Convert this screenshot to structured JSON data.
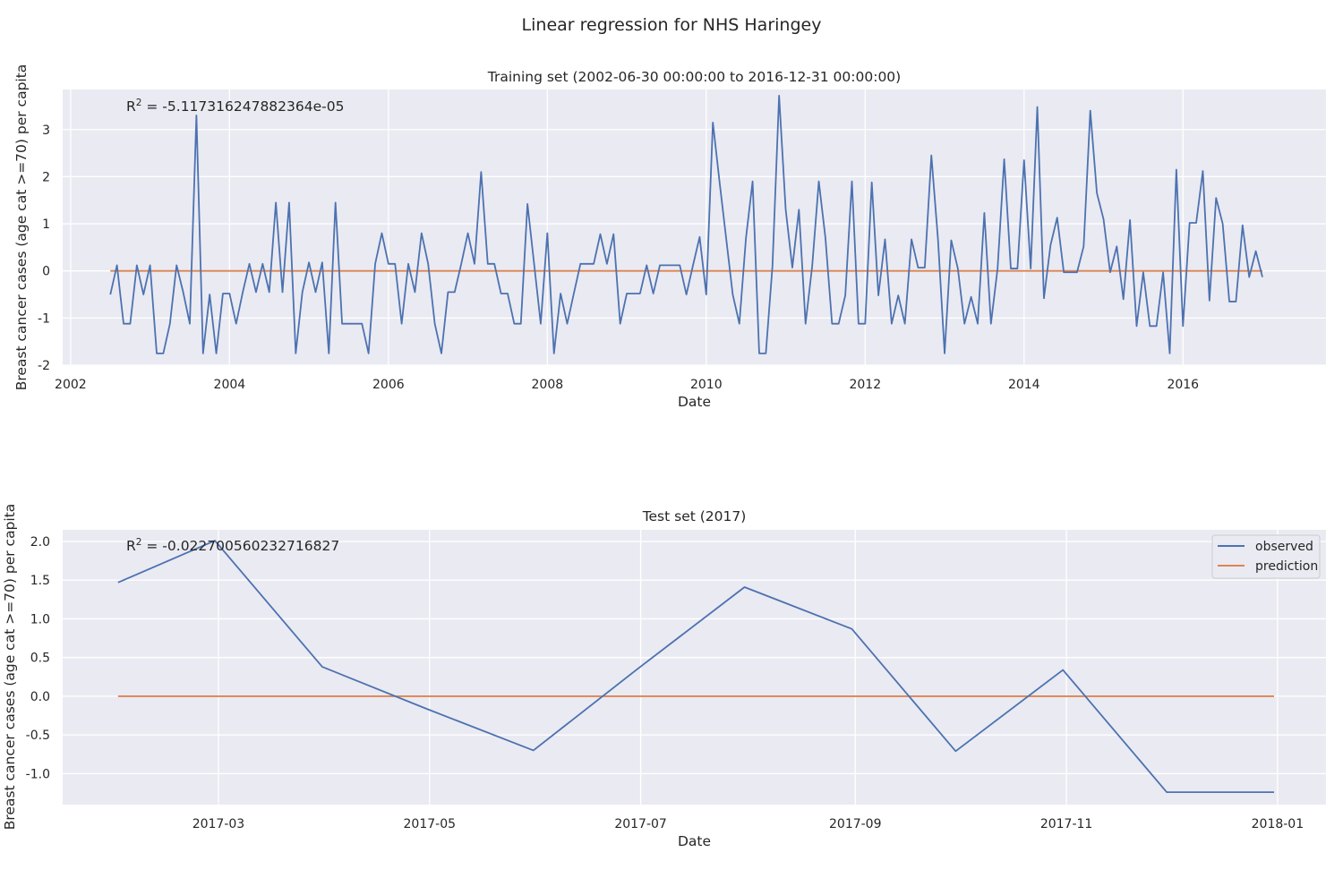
{
  "figure": {
    "title": "Linear regression for NHS Haringey"
  },
  "colors": {
    "observed": "#4c72b0",
    "prediction": "#dd8452",
    "panel_bg": "#eaeaf2",
    "grid": "#ffffff",
    "text": "#262626"
  },
  "chart_data": [
    {
      "type": "line",
      "title": "Training set (2002-06-30 00:00:00 to 2016-12-31 00:00:00)",
      "xlabel": "Date",
      "ylabel": "Breast cancer cases (age cat >=70) per capita",
      "r2_label": "R",
      "r2_sup": "2",
      "r2_value": " = -5.117316247882364e-05",
      "xlim": [
        2001.9,
        2017.8
      ],
      "ylim": [
        -2.0,
        3.85
      ],
      "xticks": [
        {
          "v": 2002.0,
          "label": "2002"
        },
        {
          "v": 2004.0,
          "label": "2004"
        },
        {
          "v": 2006.0,
          "label": "2006"
        },
        {
          "v": 2008.0,
          "label": "2008"
        },
        {
          "v": 2010.0,
          "label": "2010"
        },
        {
          "v": 2012.0,
          "label": "2012"
        },
        {
          "v": 2014.0,
          "label": "2014"
        },
        {
          "v": 2016.0,
          "label": "2016"
        }
      ],
      "yticks": [
        -2,
        -1,
        0,
        1,
        2,
        3
      ],
      "grid": true,
      "x_start": 2002.5,
      "x_step_months": 1,
      "series": [
        {
          "name": "observed",
          "values": [
            -0.5,
            0.12,
            -1.12,
            -1.12,
            0.12,
            -0.5,
            0.12,
            -1.75,
            -1.75,
            -1.12,
            0.12,
            -0.45,
            -1.12,
            3.3,
            -1.75,
            -0.5,
            -1.75,
            -0.48,
            -0.48,
            -1.12,
            -0.45,
            0.15,
            -0.45,
            0.15,
            -0.45,
            1.45,
            -0.45,
            1.45,
            -1.75,
            -0.45,
            0.18,
            -0.45,
            0.18,
            -1.75,
            1.45,
            -1.12,
            -1.12,
            -1.12,
            -1.12,
            -1.75,
            0.15,
            0.8,
            0.15,
            0.15,
            -1.12,
            0.15,
            -0.45,
            0.8,
            0.15,
            -1.12,
            -1.75,
            -0.45,
            -0.45,
            0.15,
            0.8,
            0.15,
            2.1,
            0.15,
            0.15,
            -0.48,
            -0.48,
            -1.12,
            -1.12,
            1.42,
            0.15,
            -1.12,
            0.8,
            -1.75,
            -0.48,
            -1.12,
            -0.48,
            0.15,
            0.15,
            0.15,
            0.78,
            0.15,
            0.78,
            -1.12,
            -0.48,
            -0.48,
            -0.48,
            0.12,
            -0.48,
            0.12,
            0.12,
            0.12,
            0.12,
            -0.5,
            0.12,
            0.72,
            -0.5,
            3.15,
            1.9,
            0.7,
            -0.5,
            -1.12,
            0.7,
            1.9,
            -1.75,
            -1.75,
            0.1,
            3.72,
            1.3,
            0.07,
            1.3,
            -1.12,
            0.1,
            1.9,
            0.7,
            -1.12,
            -1.12,
            -0.52,
            1.9,
            -1.12,
            -1.12,
            1.88,
            -0.52,
            0.67,
            -1.12,
            -0.52,
            -1.12,
            0.67,
            0.07,
            0.07,
            2.45,
            0.67,
            -1.75,
            0.65,
            0.05,
            -1.12,
            -0.55,
            -1.12,
            1.23,
            -1.12,
            0.05,
            2.37,
            0.05,
            0.05,
            2.35,
            0.05,
            3.48,
            -0.58,
            0.55,
            1.13,
            -0.03,
            -0.03,
            -0.03,
            0.52,
            3.4,
            1.65,
            1.1,
            -0.03,
            0.52,
            -0.6,
            1.08,
            -1.17,
            -0.03,
            -1.17,
            -1.17,
            -0.03,
            -1.75,
            2.15,
            -1.17,
            1.02,
            1.02,
            2.12,
            -0.63,
            1.55,
            1.0,
            -0.65,
            -0.65,
            0.97,
            -0.13,
            0.42,
            -0.13
          ]
        },
        {
          "name": "prediction",
          "values": [
            0.0,
            0.0
          ]
        }
      ]
    },
    {
      "type": "line",
      "title": "Test set (2017)",
      "xlabel": "Date",
      "ylabel": "Breast cancer cases (age cat >=70) per capita",
      "r2_label": "R",
      "r2_sup": "2",
      "r2_value": " = -0.022700560232716827",
      "legend_position": "upper right",
      "xlim": [
        "2017-01-15",
        "2018-01-15"
      ],
      "ylim": [
        -1.4,
        2.15
      ],
      "xticks": [
        {
          "v": "2017-03-01",
          "label": "2017-03"
        },
        {
          "v": "2017-05-01",
          "label": "2017-05"
        },
        {
          "v": "2017-07-01",
          "label": "2017-07"
        },
        {
          "v": "2017-09-01",
          "label": "2017-09"
        },
        {
          "v": "2017-11-01",
          "label": "2017-11"
        },
        {
          "v": "2018-01-01",
          "label": "2018-01"
        }
      ],
      "yticks": [
        -1.0,
        -0.5,
        0.0,
        0.5,
        1.0,
        1.5,
        2.0
      ],
      "grid": true,
      "x": [
        "2017-01-31",
        "2017-02-28",
        "2017-03-31",
        "2017-04-30",
        "2017-05-31",
        "2017-06-30",
        "2017-07-31",
        "2017-08-31",
        "2017-09-30",
        "2017-10-31",
        "2017-11-30",
        "2017-12-31"
      ],
      "series": [
        {
          "name": "observed",
          "values": [
            1.47,
            2.01,
            0.38,
            -0.16,
            -0.7,
            0.35,
            1.41,
            0.87,
            -0.71,
            0.34,
            -1.24,
            -1.24
          ]
        },
        {
          "name": "prediction",
          "values": [
            0,
            0,
            0,
            0,
            0,
            0,
            0,
            0,
            0,
            0,
            0,
            0
          ]
        }
      ]
    }
  ]
}
